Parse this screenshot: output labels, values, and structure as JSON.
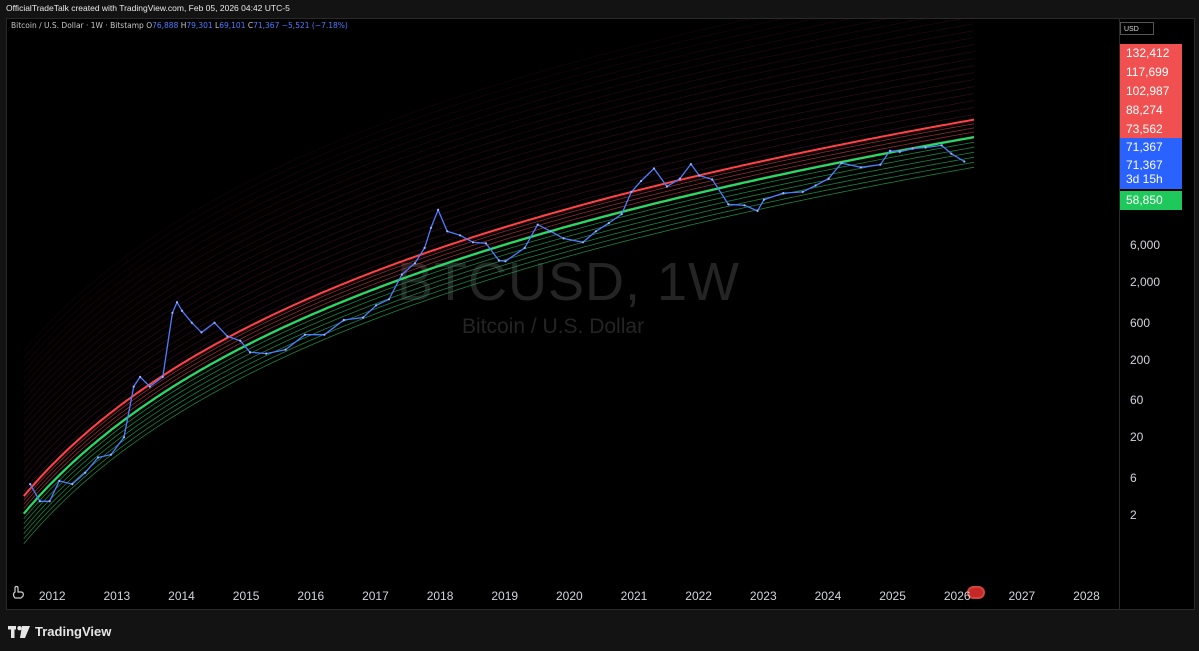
{
  "header": {
    "credit": "OfficialTradeTalk created with TradingView.com, Feb 05, 2026 04:42 UTC-5"
  },
  "legend": {
    "symbol": "Bitcoin / U.S. Dollar · 1W · Bitstamp",
    "open_label": "O",
    "open": "76,888",
    "high_label": "H",
    "high": "79,301",
    "low_label": "L",
    "low": "69,101",
    "close_label": "C",
    "close": "71,367",
    "change": "−5,521 (−7.18%)"
  },
  "watermark": {
    "symbol": "BTCUSD, 1W",
    "description": "Bitcoin / U.S. Dollar"
  },
  "price_axis": {
    "currency": "USD",
    "labels": [
      "6,000",
      "2,000",
      "600",
      "200",
      "60",
      "20",
      "6",
      "2"
    ]
  },
  "price_tags": [
    {
      "label": "132,412",
      "color": "#f0504f"
    },
    {
      "label": "117,699",
      "color": "#f0504f"
    },
    {
      "label": "102,987",
      "color": "#f0504f"
    },
    {
      "label": "88,274",
      "color": "#f0504f"
    },
    {
      "label": "73,562",
      "color": "#f0504f"
    },
    {
      "label": "71,367",
      "color": "#2962ff"
    },
    {
      "label": "71,367",
      "color": "#2962ff"
    },
    {
      "label": "3d 15h",
      "color": "#2962ff"
    },
    {
      "label": "58,850",
      "color": "#1ec85a"
    }
  ],
  "time_axis": {
    "labels": [
      "2012",
      "2013",
      "2014",
      "2015",
      "2016",
      "2017",
      "2018",
      "2019",
      "2020",
      "2021",
      "2022",
      "2023",
      "2024",
      "2025",
      "2026",
      "2027",
      "2028"
    ]
  },
  "footer": {
    "brand": "TradingView"
  },
  "icons": [
    "anchor-icon",
    "flag-icon",
    "tradingview-logo-icon"
  ],
  "chart_data": {
    "type": "line",
    "title": "BTCUSD, 1W",
    "subtitle": "Bitcoin / U.S. Dollar",
    "y_scale": "log",
    "ylim": [
      0.6,
      200000
    ],
    "xlim": [
      2011.6,
      2028.4
    ],
    "grid": false,
    "series": [
      {
        "name": "BTCUSD",
        "color": "#4c7dff",
        "x": [
          2011.65,
          2011.8,
          2011.95,
          2012.1,
          2012.3,
          2012.5,
          2012.7,
          2012.9,
          2013.1,
          2013.25,
          2013.35,
          2013.5,
          2013.7,
          2013.85,
          2013.92,
          2014.0,
          2014.15,
          2014.3,
          2014.5,
          2014.7,
          2014.9,
          2015.05,
          2015.3,
          2015.6,
          2015.9,
          2016.2,
          2016.5,
          2016.8,
          2017.0,
          2017.2,
          2017.4,
          2017.6,
          2017.75,
          2017.85,
          2017.96,
          2018.1,
          2018.3,
          2018.5,
          2018.7,
          2018.9,
          2019.0,
          2019.3,
          2019.5,
          2019.7,
          2019.9,
          2020.2,
          2020.4,
          2020.6,
          2020.8,
          2020.95,
          2021.1,
          2021.3,
          2021.5,
          2021.7,
          2021.87,
          2022.0,
          2022.2,
          2022.45,
          2022.7,
          2022.9,
          2023.0,
          2023.3,
          2023.6,
          2023.8,
          2024.0,
          2024.2,
          2024.5,
          2024.8,
          2024.95,
          2025.1,
          2025.3,
          2025.5,
          2025.75,
          2025.9,
          2026.1
        ],
        "y": [
          5,
          3,
          3,
          5.5,
          5,
          7,
          11,
          12,
          20,
          90,
          120,
          90,
          120,
          800,
          1100,
          850,
          600,
          450,
          600,
          400,
          350,
          250,
          240,
          270,
          420,
          420,
          650,
          700,
          1000,
          1200,
          2500,
          3500,
          5500,
          10000,
          17000,
          9000,
          8000,
          6500,
          6300,
          3800,
          3700,
          5500,
          11000,
          9000,
          7300,
          6500,
          9000,
          11500,
          15000,
          29000,
          40000,
          58000,
          34000,
          43000,
          66000,
          47000,
          42000,
          20000,
          19500,
          16500,
          23000,
          28000,
          29000,
          35000,
          43000,
          68000,
          60000,
          65000,
          98000,
          95000,
          105000,
          108000,
          115000,
          90000,
          71367
        ]
      }
    ],
    "bands": {
      "description": "log-regression rainbow bands",
      "red_upper_color": "#ff4444",
      "green_lower_color": "#22dd66",
      "upper_outer_color": "#a0205a"
    },
    "annotations": [
      "BTCUSD, 1W",
      "Bitcoin / U.S. Dollar"
    ]
  }
}
